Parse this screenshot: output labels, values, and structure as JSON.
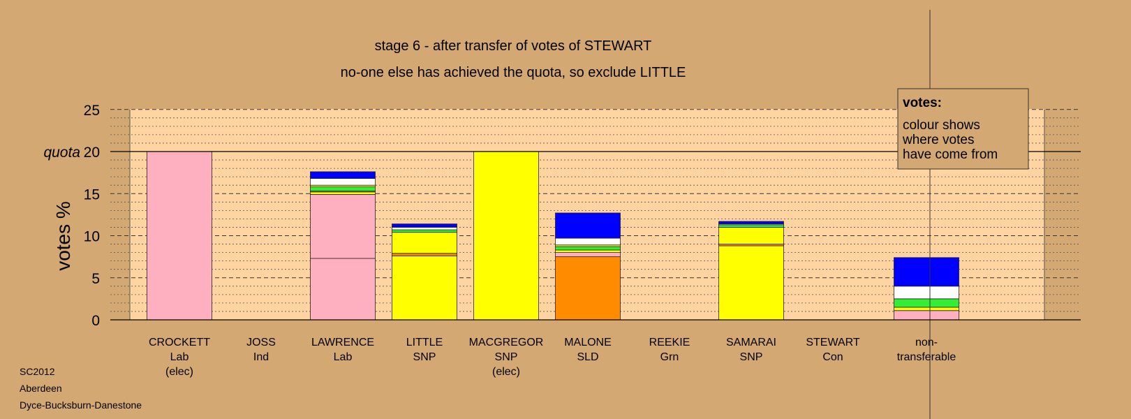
{
  "chart_data": {
    "type": "bar",
    "stacked": true,
    "title": "stage 6 - after transfer of votes of STEWART",
    "subtitle": "no-one else has achieved the quota, so exclude LITTLE",
    "ylabel": "votes %",
    "ylim": [
      0,
      25
    ],
    "yticks": [
      0,
      5,
      10,
      15,
      20,
      25
    ],
    "quota": 20,
    "quota_label": "quota",
    "grid": true,
    "colors": {
      "lab": "#FFB0C0",
      "snp": "#FFFF00",
      "sld": "#FF8C00",
      "grn": "#33EE33",
      "ind": "#FFFFFF",
      "con": "#0000FF",
      "plot_bg": "#FFD4A0"
    },
    "categories": [
      {
        "name": "CROCKETT",
        "party": "Lab",
        "note": "(elec)",
        "segments": [
          {
            "from": "lab",
            "value": 20.0
          }
        ]
      },
      {
        "name": "JOSS",
        "party": "Ind",
        "note": "",
        "segments": []
      },
      {
        "name": "LAWRENCE",
        "party": "Lab",
        "note": "",
        "segments": [
          {
            "from": "lab",
            "value": 7.3
          },
          {
            "from": "lab",
            "value": 7.6
          },
          {
            "from": "snp",
            "value": 0.3
          },
          {
            "from": "sld",
            "value": 0.1
          },
          {
            "from": "grn",
            "value": 0.5
          },
          {
            "from": "snp",
            "value": 0.2
          },
          {
            "from": "ind",
            "value": 0.8
          },
          {
            "from": "con",
            "value": 0.8
          }
        ]
      },
      {
        "name": "LITTLE",
        "party": "SNP",
        "note": "",
        "segments": [
          {
            "from": "snp",
            "value": 7.6
          },
          {
            "from": "sld",
            "value": 0.3
          },
          {
            "from": "snp",
            "value": 2.5
          },
          {
            "from": "grn",
            "value": 0.3
          },
          {
            "from": "ind",
            "value": 0.3
          },
          {
            "from": "con",
            "value": 0.4
          }
        ]
      },
      {
        "name": "MACGREGOR",
        "party": "SNP",
        "note": "(elec)",
        "segments": [
          {
            "from": "snp",
            "value": 20.0
          }
        ]
      },
      {
        "name": "MALONE",
        "party": "SLD",
        "note": "",
        "segments": [
          {
            "from": "sld",
            "value": 7.5
          },
          {
            "from": "lab",
            "value": 0.5
          },
          {
            "from": "snp",
            "value": 0.3
          },
          {
            "from": "grn",
            "value": 0.4
          },
          {
            "from": "snp",
            "value": 0.2
          },
          {
            "from": "ind",
            "value": 0.8
          },
          {
            "from": "con",
            "value": 3.0
          }
        ]
      },
      {
        "name": "REEKIE",
        "party": "Grn",
        "note": "",
        "segments": []
      },
      {
        "name": "SAMARAI",
        "party": "SNP",
        "note": "",
        "segments": [
          {
            "from": "snp",
            "value": 8.8
          },
          {
            "from": "sld",
            "value": 0.2
          },
          {
            "from": "snp",
            "value": 2.0
          },
          {
            "from": "grn",
            "value": 0.3
          },
          {
            "from": "ind",
            "value": 0.1
          },
          {
            "from": "con",
            "value": 0.3
          }
        ]
      },
      {
        "name": "STEWART",
        "party": "Con",
        "note": "",
        "segments": []
      },
      {
        "name": "non-",
        "party": "transferable",
        "note": "",
        "segments": [
          {
            "from": "lab",
            "value": 1.1
          },
          {
            "from": "snp",
            "value": 0.4
          },
          {
            "from": "grn",
            "value": 1.0
          },
          {
            "from": "ind",
            "value": 1.5
          },
          {
            "from": "con",
            "value": 3.4
          }
        ]
      }
    ],
    "legend": {
      "title": "votes:",
      "lines": [
        "colour shows",
        "where votes",
        "have come from"
      ],
      "placement": "top-right"
    }
  },
  "footer": {
    "election": "SC2012",
    "council": "Aberdeen",
    "ward": "Dyce-Bucksburn-Danestone"
  }
}
